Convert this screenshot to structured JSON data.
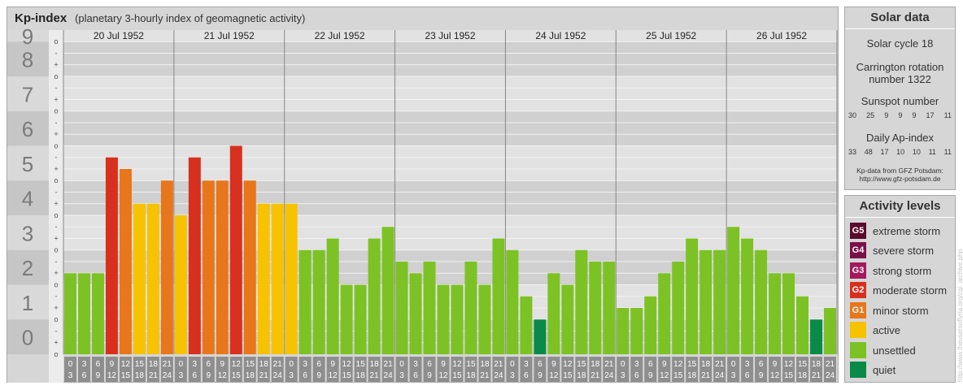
{
  "header": {
    "title": "Kp-index",
    "subtitle": "(planetary 3-hourly index of geomagnetic activity)"
  },
  "solar": {
    "title": "Solar data",
    "cycle": "Solar cycle 18",
    "carrington": [
      "Carrington rotation",
      "number 1322"
    ],
    "sunspot_label": "Sunspot number",
    "sunspot_numbers": [
      "30",
      "25",
      "9",
      "9",
      "9",
      "17",
      "11"
    ],
    "ap_label": "Daily Ap-index",
    "ap_values": [
      "33",
      "48",
      "17",
      "10",
      "10",
      "11",
      "11"
    ],
    "credit": [
      "Kp-data from GFZ Potsdam:",
      "http://www.gfz-potsdam.de"
    ]
  },
  "activity": {
    "title": "Activity levels",
    "levels": [
      {
        "badge": "G5",
        "label": "extreme storm",
        "color": "#5a0a2c"
      },
      {
        "badge": "G4",
        "label": "severe storm",
        "color": "#7a1048"
      },
      {
        "badge": "G3",
        "label": "strong storm",
        "color": "#a3195b"
      },
      {
        "badge": "G2",
        "label": "moderate storm",
        "color": "#d7301f"
      },
      {
        "badge": "G1",
        "label": "minor storm",
        "color": "#e8761a"
      },
      {
        "badge": "",
        "label": "active",
        "color": "#f7c200"
      },
      {
        "badge": "",
        "label": "unsettled",
        "color": "#7cc225"
      },
      {
        "badge": "",
        "label": "quiet",
        "color": "#0a8a48"
      }
    ]
  },
  "vertical_credit": "http://www.theusersoflyria.org/cgi_archive.php",
  "chart_data": {
    "type": "bar",
    "days": [
      "20 Jul 1952",
      "21 Jul 1952",
      "22 Jul 1952",
      "23 Jul 1952",
      "24 Jul 1952",
      "25 Jul 1952",
      "26 Jul 1952"
    ],
    "hour_labels": [
      [
        "0",
        "3"
      ],
      [
        "3",
        "6"
      ],
      [
        "6",
        "9"
      ],
      [
        "9",
        "12"
      ],
      [
        "12",
        "15"
      ],
      [
        "15",
        "18"
      ],
      [
        "18",
        "21"
      ],
      [
        "21",
        "24"
      ]
    ],
    "y_major_ticks": [
      "0",
      "1",
      "2",
      "3",
      "4",
      "5",
      "6",
      "7",
      "8",
      "9"
    ],
    "y_minor_ticks": [
      "+",
      "o",
      "-"
    ],
    "ylim": [
      0,
      9.333
    ],
    "values": [
      2.333,
      2.333,
      2.333,
      5.667,
      5.333,
      4.333,
      4.333,
      5.0,
      4.0,
      5.667,
      5.0,
      5.0,
      6.0,
      5.0,
      4.333,
      4.333,
      4.333,
      3.0,
      3.0,
      3.333,
      2.0,
      2.0,
      3.333,
      3.667,
      2.667,
      2.333,
      2.667,
      2.0,
      2.0,
      2.667,
      2.0,
      3.333,
      3.0,
      1.667,
      1.0,
      2.333,
      2.0,
      3.0,
      2.667,
      2.667,
      1.333,
      1.333,
      1.667,
      2.333,
      2.667,
      3.333,
      3.0,
      3.0,
      3.667,
      3.333,
      3.0,
      2.333,
      2.333,
      1.667,
      1.0,
      1.333
    ]
  }
}
